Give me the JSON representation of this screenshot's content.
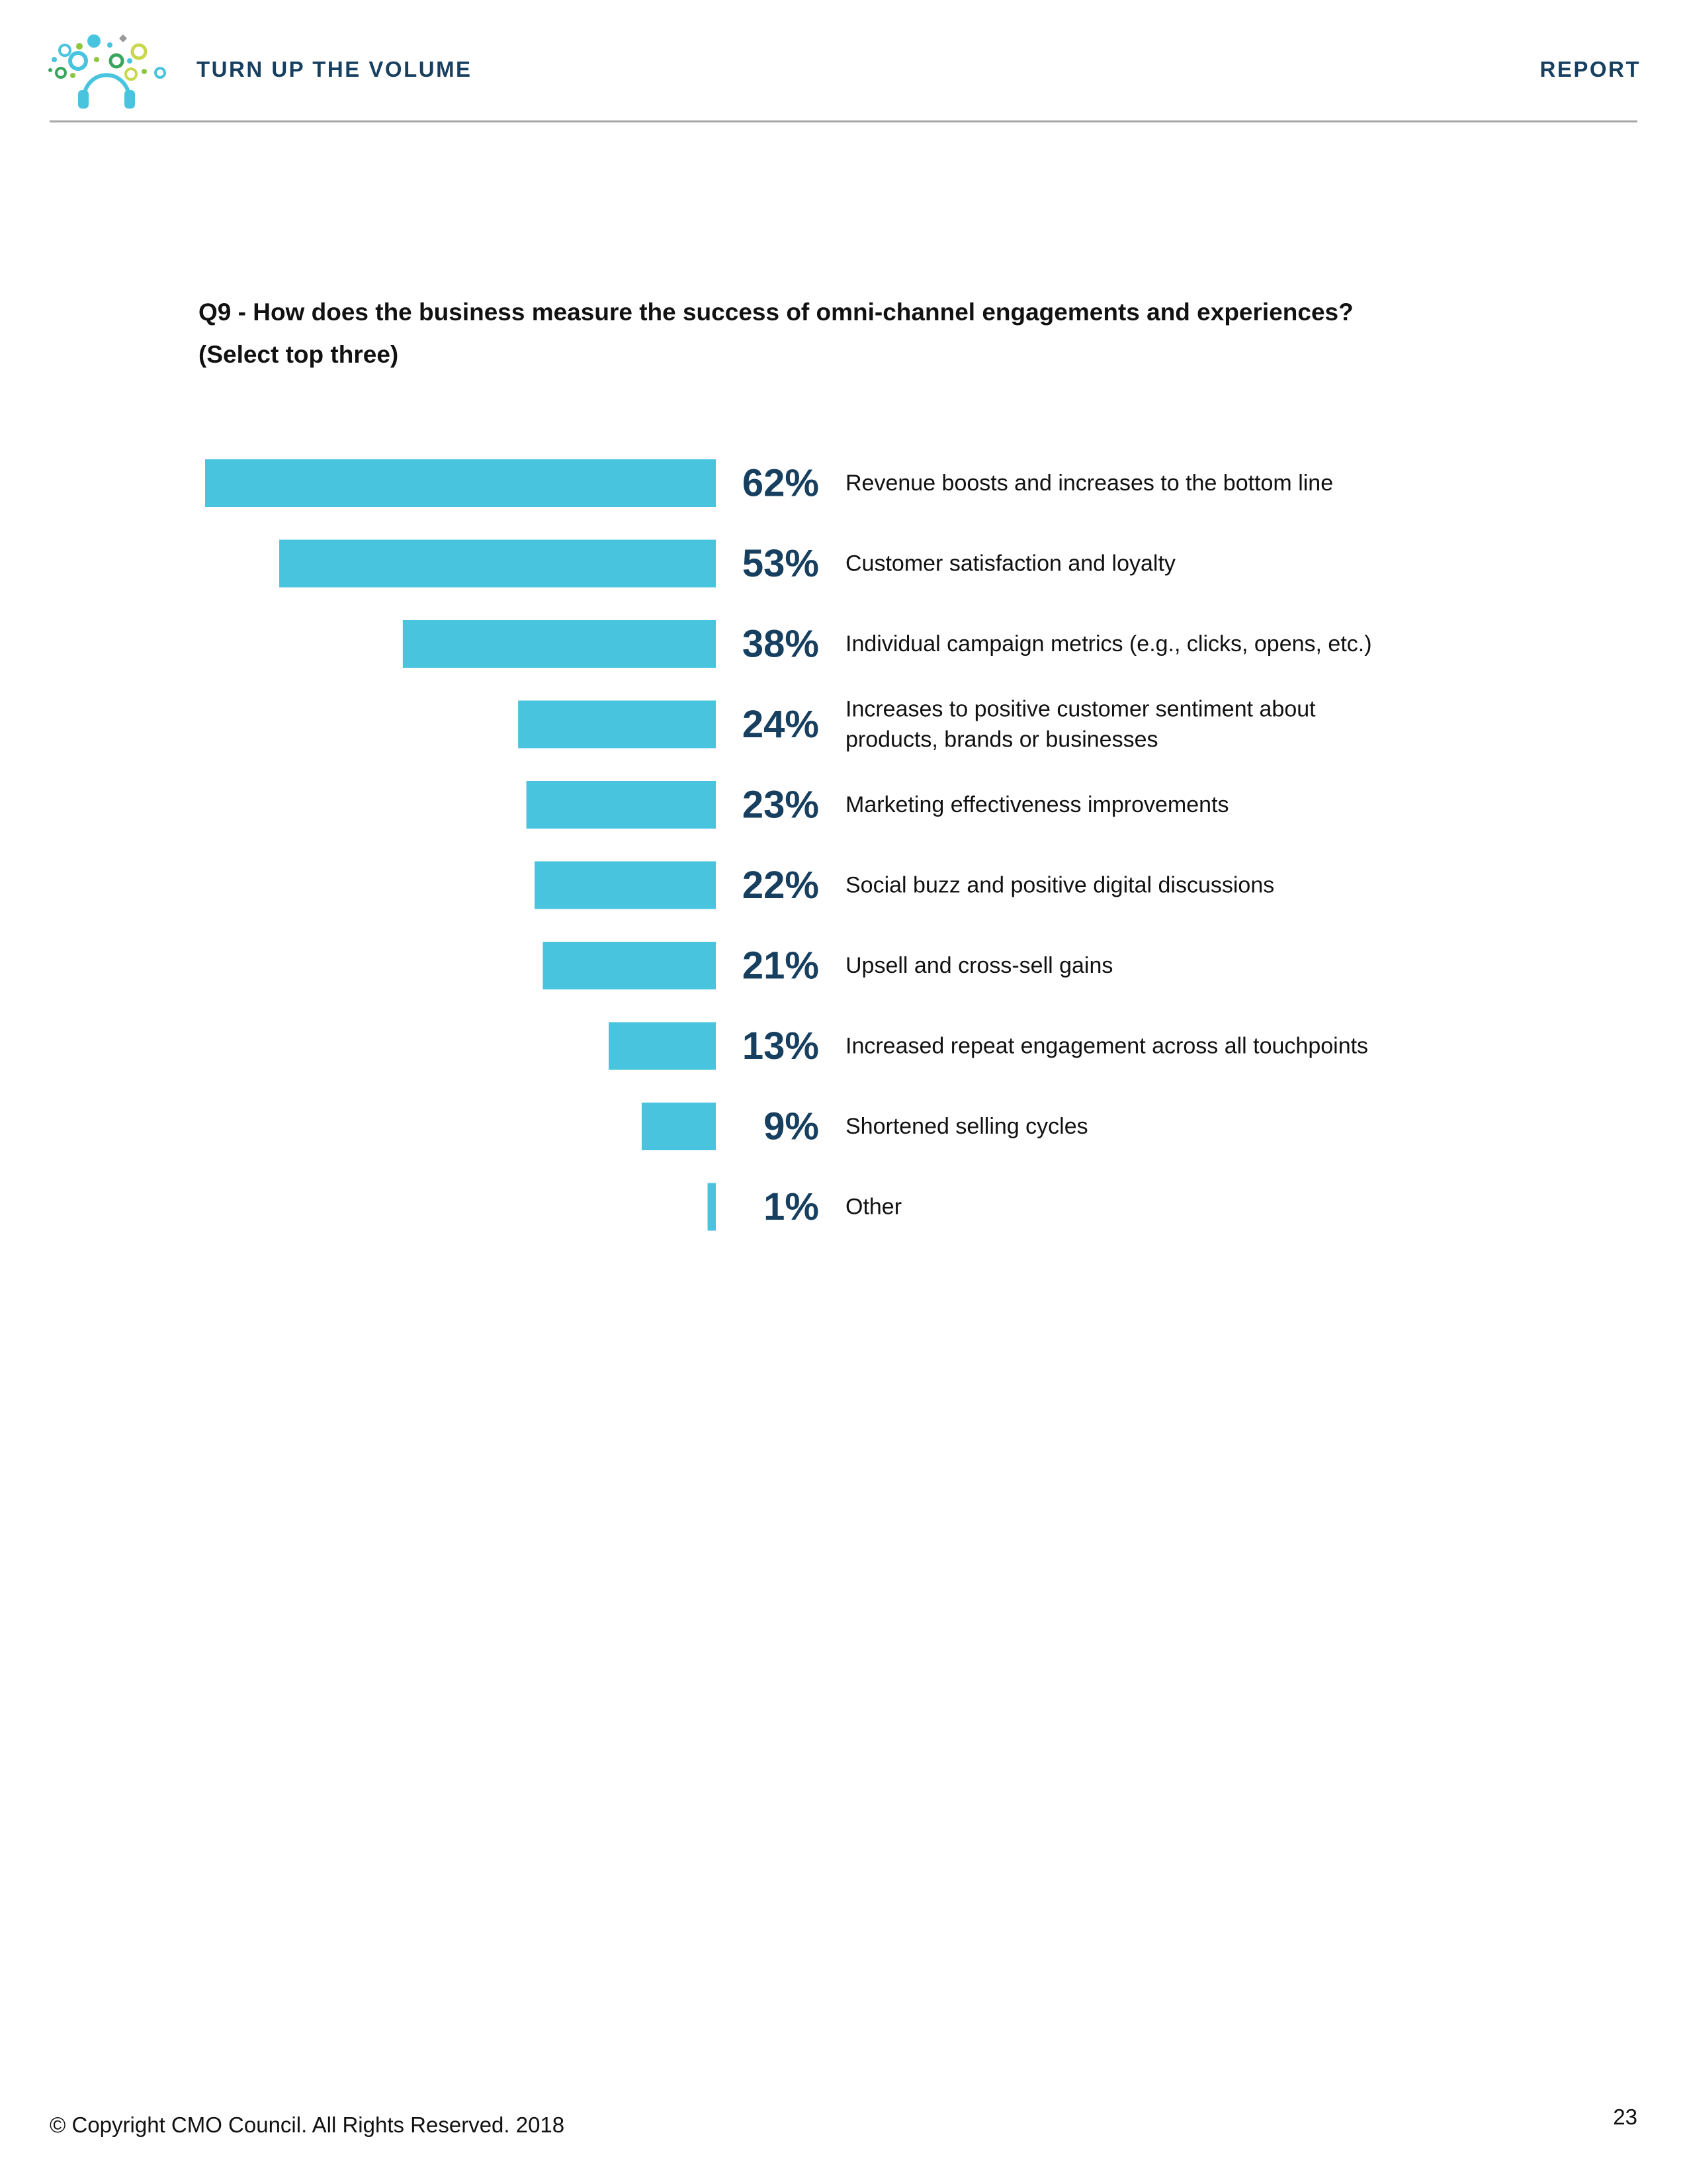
{
  "header": {
    "title": "TURN UP THE VOLUME",
    "section": "REPORT",
    "logo_icon": "headphones-bubbles-logo"
  },
  "question": {
    "line1": "Q9 - How does the business measure the success of omni-channel engagements and experiences?",
    "line2": "(Select top three)"
  },
  "colors": {
    "bar": "#48c4de",
    "value_label": "#173f5f",
    "header_text": "#173f5f"
  },
  "chart_data": {
    "type": "bar",
    "orientation": "horizontal",
    "categories": [
      "Revenue boosts and increases to the bottom line",
      "Customer satisfaction and loyalty",
      "Individual campaign metrics (e.g., clicks, opens, etc.)",
      "Increases to positive customer sentiment about products, brands or businesses",
      "Marketing effectiveness improvements",
      "Social buzz and positive digital discussions",
      "Upsell and cross-sell gains",
      "Increased repeat engagement across all touchpoints",
      "Shortened selling cycles",
      "Other"
    ],
    "category_lines": [
      [
        "Revenue boosts and increases to the bottom line"
      ],
      [
        "Customer satisfaction and loyalty"
      ],
      [
        "Individual campaign metrics (e.g., clicks, opens, etc.)"
      ],
      [
        "Increases to positive customer sentiment about",
        "products, brands or businesses"
      ],
      [
        "Marketing effectiveness improvements"
      ],
      [
        "Social buzz and positive digital discussions"
      ],
      [
        "Upsell and cross-sell gains"
      ],
      [
        "Increased repeat engagement across all touchpoints"
      ],
      [
        "Shortened selling cycles"
      ],
      [
        "Other"
      ]
    ],
    "values": [
      62,
      53,
      38,
      24,
      23,
      22,
      21,
      13,
      9,
      1
    ],
    "value_labels": [
      "62%",
      "53%",
      "38%",
      "24%",
      "23%",
      "22%",
      "21%",
      "13%",
      "9%",
      "1%"
    ],
    "unit": "%",
    "bar_direction": "right-aligned, extending left",
    "grid": false,
    "legend": "none",
    "xlim": [
      0,
      62
    ]
  },
  "footer": {
    "copyright": "© Copyright CMO Council. All Rights Reserved. 2018",
    "page_number": "23"
  }
}
